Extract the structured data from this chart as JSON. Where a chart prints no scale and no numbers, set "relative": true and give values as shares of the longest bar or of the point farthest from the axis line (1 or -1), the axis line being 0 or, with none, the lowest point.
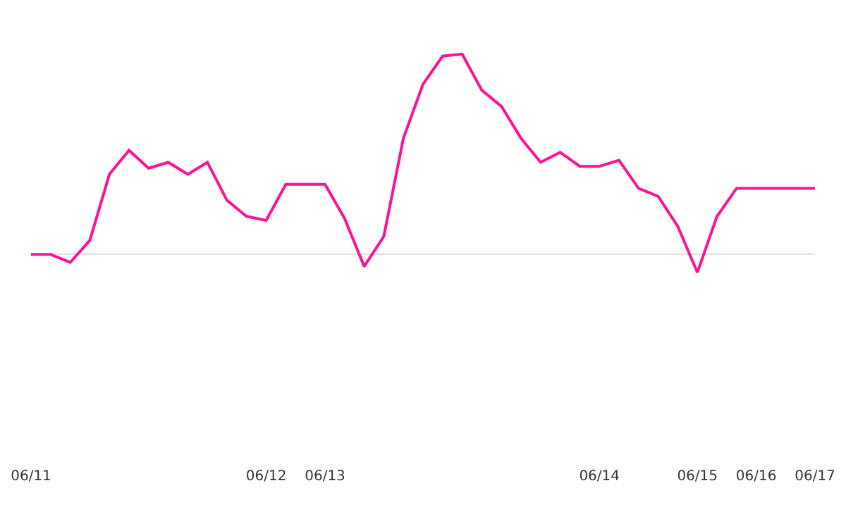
{
  "chart_data": {
    "type": "line",
    "relative": true,
    "categories": [
      "06/11",
      null,
      null,
      null,
      null,
      null,
      null,
      null,
      null,
      null,
      null,
      null,
      "06/12",
      null,
      null,
      "06/13",
      null,
      null,
      null,
      null,
      null,
      null,
      null,
      null,
      null,
      null,
      null,
      null,
      null,
      "06/14",
      null,
      null,
      null,
      null,
      "06/15",
      null,
      null,
      "06/16",
      null,
      null,
      "06/17"
    ],
    "series": [
      {
        "color": "#ff1493",
        "values": [
          0,
          0,
          -0.04,
          0.07,
          0.4,
          0.52,
          0.43,
          0.46,
          0.4,
          0.46,
          0.27,
          0.19,
          0.17,
          0.35,
          0.35,
          0.35,
          0.18,
          -0.06,
          0.09,
          0.58,
          0.85,
          0.99,
          1,
          0.82,
          0.74,
          0.58,
          0.46,
          0.51,
          0.44,
          0.44,
          0.47,
          0.33,
          0.29,
          0.14,
          -0.09,
          0.19,
          0.33,
          0.33,
          0.33,
          0.33,
          0.33
        ]
      }
    ],
    "grid": false,
    "marker": "none",
    "line_style": "solid"
  }
}
